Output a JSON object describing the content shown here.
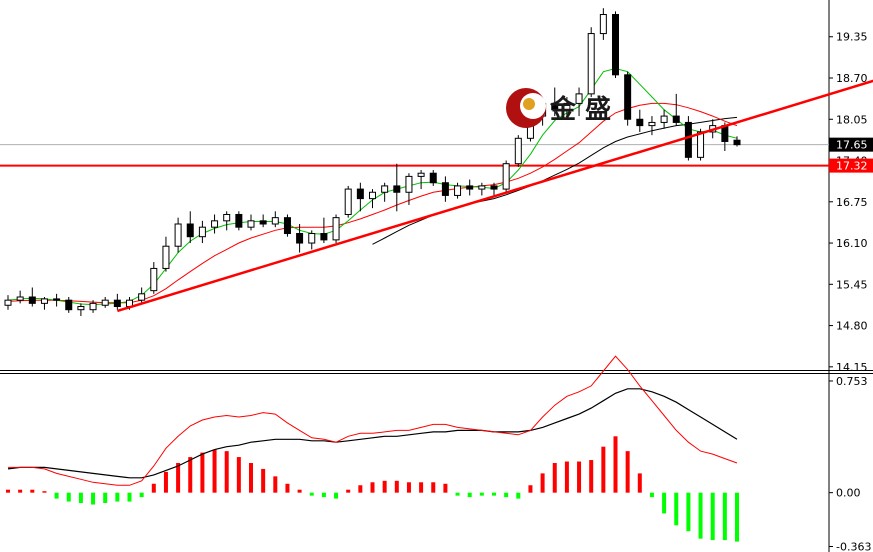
{
  "watermark": {
    "text": "金 盛",
    "logo": "jinsheng-logo-icon"
  },
  "colors": {
    "bull_body": "#ffffff",
    "bear_body": "#000000",
    "candle_outline": "#000000",
    "ma_fast": "#00c000",
    "ma_mid": "#ff0000",
    "ma_slow": "#000000",
    "trendline": "#ff0000",
    "support": "#ff0000",
    "macd_pos": "#ff0000",
    "macd_neg": "#00ff00",
    "macd_line": "#000000",
    "signal_line": "#ff0000",
    "current_tag": "#000000",
    "support_tag": "#ff0000"
  },
  "chart_data": [
    {
      "type": "candlestick",
      "panel": "price",
      "y_ticks": [
        "19.35",
        "18.70",
        "18.05",
        "17.40",
        "16.75",
        "16.10",
        "15.45",
        "14.80",
        "14.15"
      ],
      "ylim": [
        14.1,
        19.85
      ],
      "tags": {
        "current": "17.65",
        "support": "17.32"
      },
      "ohlc": [
        [
          15.12,
          15.28,
          15.05,
          15.2
        ],
        [
          15.2,
          15.35,
          15.15,
          15.25
        ],
        [
          15.25,
          15.4,
          15.1,
          15.15
        ],
        [
          15.15,
          15.25,
          15.05,
          15.22
        ],
        [
          15.22,
          15.3,
          15.1,
          15.2
        ],
        [
          15.2,
          15.25,
          15.0,
          15.05
        ],
        [
          15.05,
          15.15,
          14.95,
          15.1
        ],
        [
          15.05,
          15.2,
          15.0,
          15.15
        ],
        [
          15.12,
          15.25,
          15.08,
          15.2
        ],
        [
          15.2,
          15.3,
          15.05,
          15.1
        ],
        [
          15.1,
          15.25,
          15.05,
          15.2
        ],
        [
          15.2,
          15.4,
          15.15,
          15.3
        ],
        [
          15.35,
          15.8,
          15.3,
          15.7
        ],
        [
          15.7,
          16.2,
          15.65,
          16.05
        ],
        [
          16.05,
          16.5,
          15.95,
          16.4
        ],
        [
          16.4,
          16.6,
          16.1,
          16.2
        ],
        [
          16.2,
          16.45,
          16.1,
          16.35
        ],
        [
          16.35,
          16.55,
          16.25,
          16.45
        ],
        [
          16.45,
          16.6,
          16.3,
          16.55
        ],
        [
          16.55,
          16.6,
          16.3,
          16.35
        ],
        [
          16.35,
          16.55,
          16.3,
          16.45
        ],
        [
          16.45,
          16.55,
          16.35,
          16.4
        ],
        [
          16.4,
          16.6,
          16.35,
          16.5
        ],
        [
          16.5,
          16.55,
          16.2,
          16.25
        ],
        [
          16.25,
          16.4,
          15.95,
          16.1
        ],
        [
          16.1,
          16.3,
          16.0,
          16.25
        ],
        [
          16.25,
          16.5,
          16.1,
          16.15
        ],
        [
          16.15,
          16.55,
          16.1,
          16.5
        ],
        [
          16.55,
          17.0,
          16.5,
          16.95
        ],
        [
          16.95,
          17.05,
          16.6,
          16.8
        ],
        [
          16.8,
          16.95,
          16.65,
          16.9
        ],
        [
          16.9,
          17.05,
          16.75,
          17.0
        ],
        [
          17.0,
          17.35,
          16.6,
          16.9
        ],
        [
          16.9,
          17.2,
          16.7,
          17.15
        ],
        [
          17.15,
          17.25,
          16.95,
          17.2
        ],
        [
          17.2,
          17.25,
          17.0,
          17.05
        ],
        [
          17.05,
          17.15,
          16.75,
          16.85
        ],
        [
          16.85,
          17.05,
          16.8,
          17.0
        ],
        [
          17.0,
          17.1,
          16.85,
          16.95
        ],
        [
          16.95,
          17.05,
          16.85,
          17.0
        ],
        [
          17.0,
          17.05,
          16.85,
          16.95
        ],
        [
          16.95,
          17.4,
          16.9,
          17.35
        ],
        [
          17.35,
          17.8,
          17.3,
          17.75
        ],
        [
          17.75,
          18.2,
          17.7,
          18.1
        ],
        [
          18.1,
          18.35,
          17.95,
          18.3
        ],
        [
          18.3,
          18.55,
          18.1,
          18.2
        ],
        [
          18.2,
          18.4,
          18.05,
          18.3
        ],
        [
          18.3,
          18.55,
          18.1,
          18.45
        ],
        [
          18.45,
          19.5,
          18.4,
          19.4
        ],
        [
          19.4,
          19.8,
          19.3,
          19.7
        ],
        [
          19.7,
          19.75,
          18.7,
          18.75
        ],
        [
          18.75,
          18.8,
          17.95,
          18.05
        ],
        [
          18.05,
          18.2,
          17.85,
          17.95
        ],
        [
          17.95,
          18.1,
          17.8,
          18.0
        ],
        [
          18.0,
          18.2,
          17.9,
          18.1
        ],
        [
          18.1,
          18.45,
          17.95,
          18.0
        ],
        [
          18.0,
          18.1,
          17.4,
          17.45
        ],
        [
          17.45,
          17.9,
          17.4,
          17.85
        ],
        [
          17.85,
          18.05,
          17.75,
          17.95
        ],
        [
          17.95,
          18.0,
          17.55,
          17.7
        ],
        [
          17.72,
          17.78,
          17.62,
          17.65
        ]
      ],
      "ma_fast": [
        15.2,
        15.22,
        15.23,
        15.22,
        15.2,
        15.17,
        15.14,
        15.13,
        15.14,
        15.15,
        15.18,
        15.28,
        15.45,
        15.7,
        15.95,
        16.13,
        16.25,
        16.33,
        16.39,
        16.42,
        16.44,
        16.44,
        16.44,
        16.4,
        16.3,
        16.25,
        16.24,
        16.3,
        16.45,
        16.62,
        16.78,
        16.9,
        16.95,
        17.0,
        17.05,
        17.06,
        17.02,
        17.0,
        16.99,
        16.98,
        16.96,
        17.05,
        17.25,
        17.5,
        17.8,
        18.03,
        18.15,
        18.25,
        18.52,
        18.8,
        18.85,
        18.8,
        18.6,
        18.4,
        18.2,
        18.05,
        17.9,
        17.85,
        17.88,
        17.8,
        17.75
      ],
      "ma_mid": [
        15.18,
        15.19,
        15.2,
        15.2,
        15.2,
        15.19,
        15.18,
        15.17,
        15.16,
        15.16,
        15.16,
        15.2,
        15.27,
        15.38,
        15.52,
        15.65,
        15.78,
        15.9,
        16.0,
        16.1,
        16.18,
        16.24,
        16.3,
        16.34,
        16.35,
        16.35,
        16.35,
        16.37,
        16.42,
        16.48,
        16.55,
        16.62,
        16.7,
        16.77,
        16.84,
        16.9,
        16.93,
        16.96,
        16.98,
        17.0,
        17.02,
        17.06,
        17.12,
        17.2,
        17.3,
        17.42,
        17.55,
        17.68,
        17.85,
        18.02,
        18.15,
        18.22,
        18.27,
        18.3,
        18.3,
        18.28,
        18.23,
        18.17,
        18.1,
        18.02,
        17.95
      ],
      "ma_slow": [
        null,
        null,
        null,
        null,
        null,
        null,
        null,
        null,
        null,
        null,
        null,
        null,
        null,
        null,
        null,
        null,
        null,
        null,
        null,
        null,
        null,
        null,
        null,
        null,
        null,
        null,
        null,
        null,
        null,
        null,
        16.08,
        16.18,
        16.28,
        16.38,
        16.46,
        16.54,
        16.61,
        16.67,
        16.72,
        16.76,
        16.8,
        16.86,
        16.93,
        17.0,
        17.08,
        17.17,
        17.26,
        17.36,
        17.48,
        17.6,
        17.7,
        17.77,
        17.82,
        17.87,
        17.91,
        17.95,
        17.97,
        18.0,
        18.03,
        18.06,
        18.08
      ],
      "trendline": {
        "from": [
          9,
          15.03
        ],
        "to": [
          72,
          18.7
        ]
      },
      "support": 17.32
    },
    {
      "type": "macd",
      "panel": "indicator",
      "y_ticks": [
        "0.753",
        "0.00",
        "-0.363"
      ],
      "ylim": [
        -0.4,
        0.8
      ],
      "histogram": [
        0.02,
        0.02,
        0.02,
        0.01,
        -0.04,
        -0.06,
        -0.07,
        -0.08,
        -0.07,
        -0.06,
        -0.06,
        -0.03,
        0.06,
        0.14,
        0.2,
        0.24,
        0.27,
        0.29,
        0.28,
        0.24,
        0.2,
        0.16,
        0.11,
        0.06,
        0.02,
        -0.02,
        -0.03,
        -0.04,
        0.02,
        0.05,
        0.07,
        0.08,
        0.08,
        0.07,
        0.07,
        0.07,
        0.06,
        -0.02,
        -0.03,
        -0.02,
        -0.02,
        -0.03,
        -0.04,
        0.05,
        0.13,
        0.2,
        0.21,
        0.21,
        0.22,
        0.31,
        0.38,
        0.28,
        0.13,
        -0.03,
        -0.14,
        -0.22,
        -0.26,
        -0.31,
        -0.32,
        -0.32,
        -0.33
      ],
      "macd_line": [
        0.16,
        0.17,
        0.17,
        0.17,
        0.16,
        0.15,
        0.14,
        0.13,
        0.12,
        0.11,
        0.1,
        0.1,
        0.12,
        0.15,
        0.18,
        0.22,
        0.26,
        0.29,
        0.31,
        0.32,
        0.34,
        0.35,
        0.36,
        0.36,
        0.36,
        0.35,
        0.35,
        0.34,
        0.35,
        0.36,
        0.37,
        0.38,
        0.38,
        0.39,
        0.4,
        0.41,
        0.41,
        0.42,
        0.42,
        0.42,
        0.41,
        0.41,
        0.41,
        0.42,
        0.44,
        0.47,
        0.5,
        0.53,
        0.57,
        0.62,
        0.67,
        0.7,
        0.7,
        0.68,
        0.65,
        0.61,
        0.56,
        0.51,
        0.46,
        0.41,
        0.36
      ],
      "signal_line": [
        0.17,
        0.17,
        0.17,
        0.16,
        0.13,
        0.11,
        0.09,
        0.07,
        0.06,
        0.05,
        0.05,
        0.08,
        0.18,
        0.3,
        0.38,
        0.45,
        0.49,
        0.51,
        0.52,
        0.51,
        0.52,
        0.54,
        0.53,
        0.47,
        0.42,
        0.37,
        0.36,
        0.34,
        0.38,
        0.4,
        0.4,
        0.41,
        0.42,
        0.42,
        0.44,
        0.46,
        0.46,
        0.44,
        0.43,
        0.42,
        0.41,
        0.4,
        0.39,
        0.42,
        0.51,
        0.59,
        0.65,
        0.68,
        0.72,
        0.82,
        0.92,
        0.83,
        0.72,
        0.62,
        0.52,
        0.42,
        0.34,
        0.28,
        0.26,
        0.23,
        0.2
      ]
    }
  ]
}
